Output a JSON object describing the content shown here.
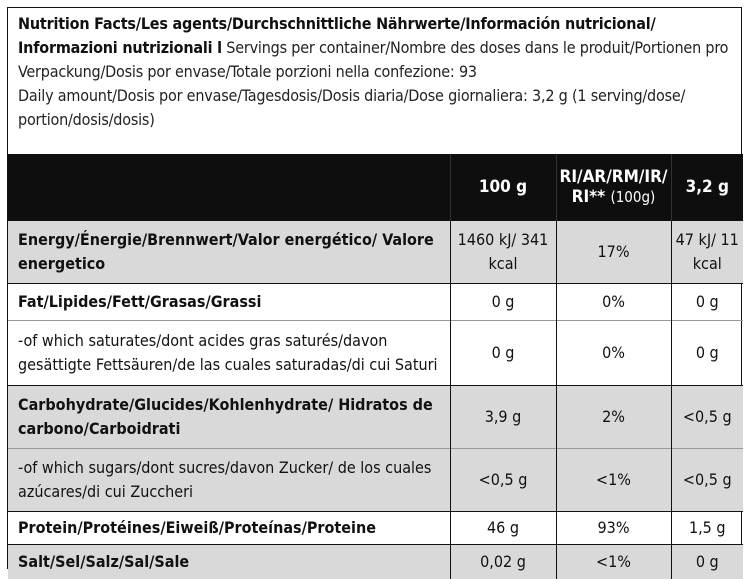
{
  "intro": {
    "title_bold": "Nutrition Facts/Les agents/Durchschnittliche Nährwerte/Información nutricional/ Informazioni nutrizionali l",
    "servings": " Servings per container/Nombre des doses dans le produit/Portionen pro Verpackung/Dosis por envase/Totale porzioni nella confezione: 93",
    "daily": "Daily amount/Dosis por envase/Tagesdosis/Dosis diaria/Dose giornaliera: 3,2 g (1 serving/dose/ portion/dosis/dosis)"
  },
  "table": {
    "headers": {
      "per100": "100 g",
      "ri_main": "RI/AR/RM/IR/",
      "ri_second": "RI** ",
      "ri_small": "(100g)",
      "serving": "3,2 g"
    },
    "rows": [
      {
        "label": "Energy/Énergie/Brennwert/Valor energético/ Valore energetico",
        "per100": "1460 kJ/ 341 kcal",
        "ri": "17%",
        "serving": "47 kJ/ 11 kcal"
      },
      {
        "label": "Fat/Lipides/Fett/Grasas/Grassi",
        "per100": "0 g",
        "ri": "0%",
        "serving": "0 g"
      },
      {
        "label": "-of which saturates/dont acides gras saturés/davon gesättigte Fettsäuren/de las cuales saturadas/di cui Saturi",
        "per100": "0 g",
        "ri": "0%",
        "serving": "0 g"
      },
      {
        "label": "Carbohydrate/Glucides/Kohlenhydrate/ Hidratos de carbono/Carboidrati",
        "per100": "3,9 g",
        "ri": "2%",
        "serving": "<0,5 g"
      },
      {
        "label": "-of which sugars/dont sucres/davon Zucker/ de los cuales azúcares/di cui Zuccheri",
        "per100": "<0,5 g",
        "ri": "<1%",
        "serving": "<0,5 g"
      },
      {
        "label": "Protein/Protéines/Eiweiß/Proteínas/Proteine",
        "per100": "46 g",
        "ri": "93%",
        "serving": "1,5 g"
      },
      {
        "label": "Salt/Sel/Salz/Sal/Sale",
        "per100": "0,02 g",
        "ri": "<1%",
        "serving": "0 g"
      }
    ]
  }
}
